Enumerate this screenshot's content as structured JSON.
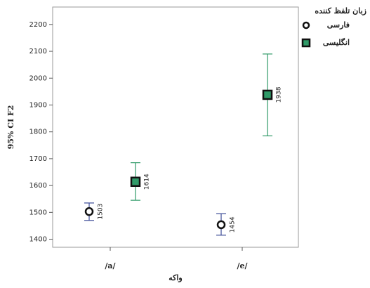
{
  "chart_data": {
    "type": "errorbar",
    "x_label": "واکه",
    "y_label": "95% CI F2",
    "legend_title": "زبان تلفظ کننده",
    "categories": [
      "/a/",
      "/e/"
    ],
    "series": [
      {
        "name": "فارسی",
        "color": "#3b4a96",
        "marker": "circle",
        "values": [
          1503,
          1454
        ],
        "lower": [
          1470,
          1415
        ],
        "upper": [
          1535,
          1495
        ]
      },
      {
        "name": "انگلیسی",
        "color": "#2f9a68",
        "marker": "square",
        "values": [
          1614,
          1938
        ],
        "lower": [
          1545,
          1785
        ],
        "upper": [
          1685,
          2090
        ]
      }
    ],
    "ylim": [
      1370,
      2265
    ],
    "yticks": [
      1400,
      1500,
      1600,
      1700,
      1800,
      1900,
      2000,
      2100,
      2200
    ]
  }
}
